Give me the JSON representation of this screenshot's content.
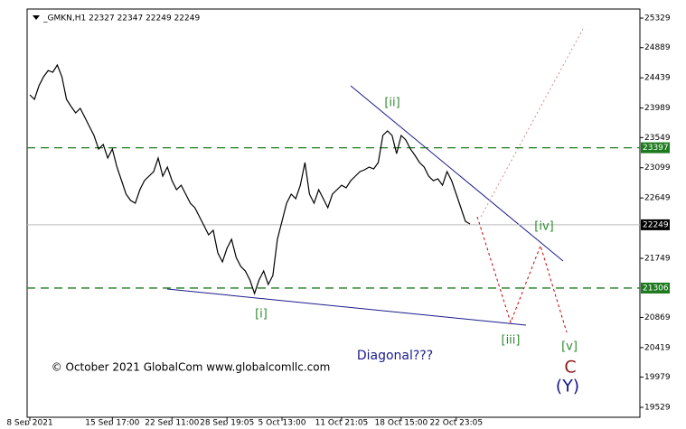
{
  "chart_data": {
    "type": "line",
    "header": "_GMKN,H1  22327 22347 22249 22249",
    "copyright": "© October 2021 GlobalCom www.globalcomllc.com",
    "annotation": "Diagonal???",
    "waves": [
      "[i]",
      "[ii]",
      "[iii]",
      "[iv]",
      "[v]",
      "C",
      "(Y)"
    ],
    "categories": [
      "8 Sep 2021",
      null,
      null,
      null,
      null,
      null,
      null,
      null,
      null,
      null,
      null,
      null,
      null,
      null,
      null,
      null,
      null,
      null,
      "15 Sep 17:00",
      null,
      null,
      null,
      null,
      null,
      null,
      null,
      null,
      null,
      null,
      null,
      null,
      "22 Sep 11:00",
      null,
      null,
      null,
      null,
      null,
      null,
      null,
      null,
      null,
      null,
      null,
      "28 Sep 19:05",
      null,
      null,
      null,
      null,
      null,
      null,
      null,
      null,
      null,
      null,
      null,
      "5 Oct 13:00",
      null,
      null,
      null,
      null,
      null,
      null,
      null,
      null,
      null,
      null,
      null,
      null,
      "11 Oct 21:05",
      null,
      null,
      null,
      null,
      null,
      null,
      null,
      null,
      null,
      null,
      null,
      null,
      "18 Oct 15:00",
      null,
      null,
      null,
      null,
      null,
      null,
      null,
      null,
      null,
      null,
      null,
      "22 Oct 23:05",
      null,
      null,
      null
    ],
    "series": [
      {
        "name": "_GMKN,H1",
        "color": "#000000",
        "values": [
          24185,
          24118,
          24320,
          24454,
          24548,
          24522,
          24629,
          24454,
          24118,
          24010,
          23916,
          23983,
          23849,
          23714,
          23580,
          23378,
          23445,
          23243,
          23378,
          23109,
          22907,
          22705,
          22611,
          22570,
          22772,
          22907,
          22974,
          23041,
          23243,
          22974,
          23109,
          22907,
          22772,
          22839,
          22705,
          22570,
          22503,
          22368,
          22234,
          22099,
          22167,
          21830,
          21696,
          21897,
          22032,
          21763,
          21628,
          21561,
          21426,
          21225,
          21426,
          21561,
          21359,
          21494,
          22032,
          22301,
          22570,
          22705,
          22638,
          22839,
          23176,
          22705,
          22570,
          22772,
          22638,
          22503,
          22705,
          22772,
          22839,
          22799,
          22907,
          22974,
          23041,
          23068,
          23109,
          23082,
          23176,
          23580,
          23647,
          23580,
          23310,
          23580,
          23512,
          23378,
          23284,
          23176,
          23109,
          22974,
          22907,
          22934,
          22839,
          23041,
          22907,
          22705,
          22503,
          22301,
          22261
        ]
      }
    ],
    "ylim": [
      19381,
      25464
    ],
    "yticks": [
      25329,
      24889,
      24439,
      23989,
      23549,
      23099,
      22649,
      21749,
      20869,
      20419,
      19979,
      19529
    ],
    "levels": [
      {
        "value": 23397,
        "color": "#1e7a1e"
      },
      {
        "value": 21306,
        "color": "#1e7a1e"
      },
      {
        "value": 22249,
        "color": "#000000"
      }
    ]
  }
}
